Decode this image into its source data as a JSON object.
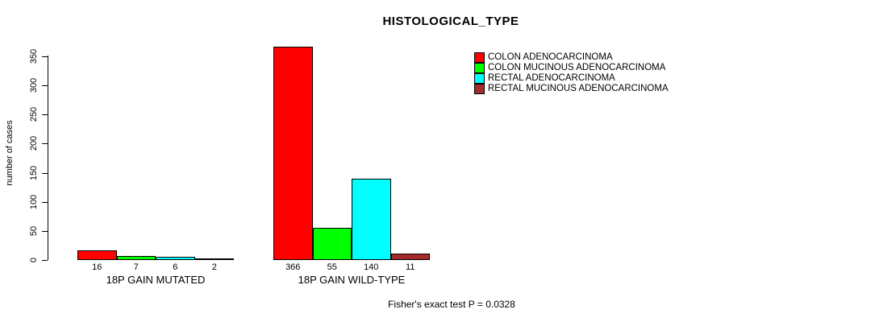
{
  "chart_data": {
    "type": "bar",
    "title": "HISTOLOGICAL_TYPE",
    "ylabel": "number of cases",
    "ylim": [
      0,
      350
    ],
    "yticks": [
      0,
      50,
      100,
      150,
      200,
      250,
      300,
      350
    ],
    "grid": false,
    "legend_position": "top-right",
    "categories": [
      "18P GAIN MUTATED",
      "18P GAIN WILD-TYPE"
    ],
    "series": [
      {
        "name": "COLON ADENOCARCINOMA",
        "color": "#ff0000",
        "values": [
          16,
          366
        ]
      },
      {
        "name": "COLON MUCINOUS ADENOCARCINOMA",
        "color": "#00ff00",
        "values": [
          7,
          55
        ]
      },
      {
        "name": "RECTAL ADENOCARCINOMA",
        "color": "#00ffff",
        "values": [
          6,
          140
        ]
      },
      {
        "name": "RECTAL MUCINOUS ADENOCARCINOMA",
        "color": "#a52a2a",
        "values": [
          2,
          11
        ]
      }
    ],
    "bar_labels": [
      [
        16,
        7,
        6,
        2
      ],
      [
        366,
        55,
        140,
        11
      ]
    ],
    "annotation": "Fisher's exact test P = 0.0328"
  },
  "colors": {
    "axis": "#000000",
    "background": "#ffffff"
  }
}
